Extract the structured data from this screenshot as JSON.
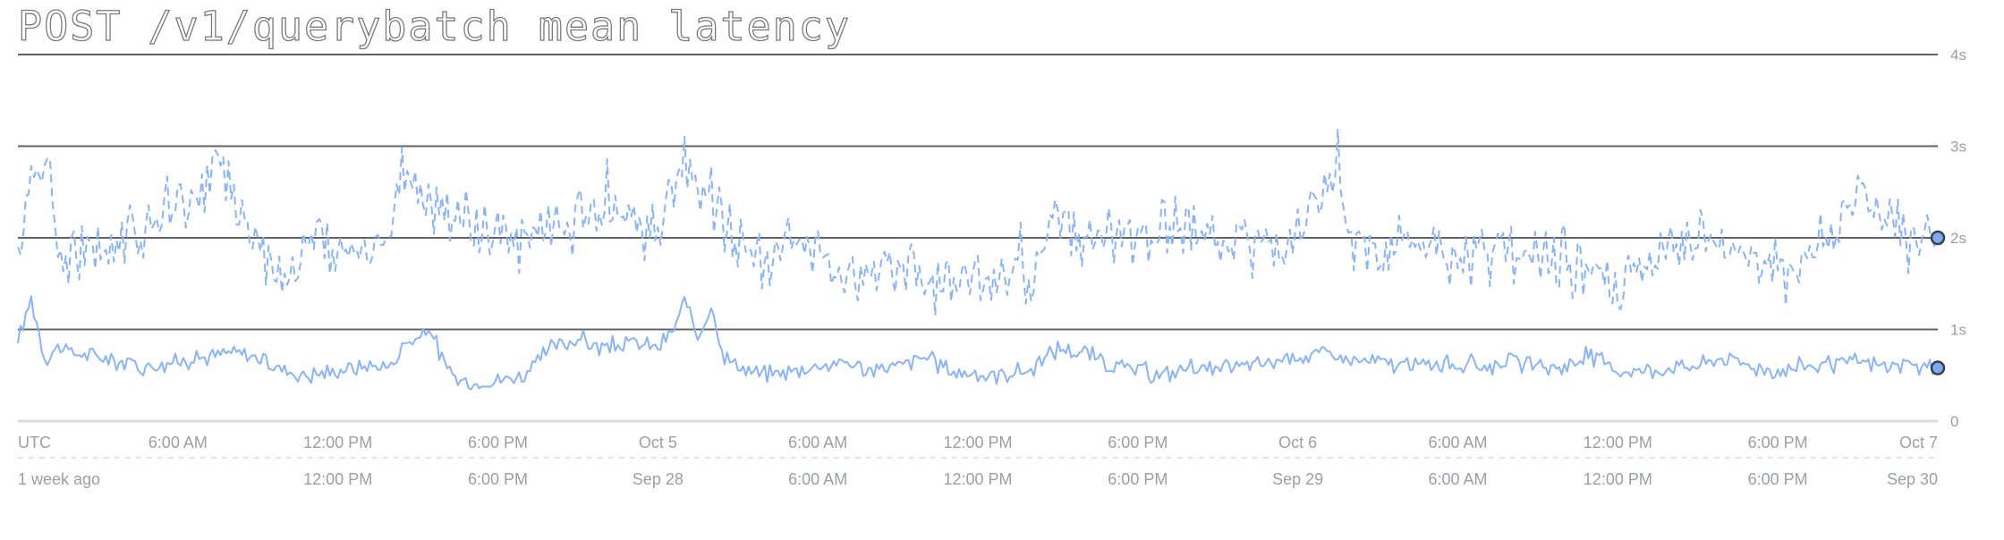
{
  "title": "POST /v1/querybatch mean latency",
  "colors": {
    "series_line": "#8ab4f8",
    "grid_line": "#5f6368",
    "axis_text": "#9aa0a6",
    "baseline": "#dadce0",
    "endpoint_fill": "#7baaf7",
    "endpoint_stroke": "#3c4043"
  },
  "chart_data": {
    "type": "line",
    "title": "POST /v1/querybatch mean latency",
    "grid": true,
    "y_unit": "s",
    "ylim": [
      0,
      4
    ],
    "y_ticks": [
      {
        "value": 4,
        "label": "4s"
      },
      {
        "value": 3,
        "label": "3s"
      },
      {
        "value": 2,
        "label": "2s"
      },
      {
        "value": 1,
        "label": "1s"
      },
      {
        "value": 0,
        "label": "0"
      }
    ],
    "x_unit": "hours",
    "xlim": [
      0,
      72
    ],
    "x_ticks_primary": [
      {
        "hour": 0,
        "label": "UTC"
      },
      {
        "hour": 6,
        "label": "6:00 AM"
      },
      {
        "hour": 12,
        "label": "12:00 PM"
      },
      {
        "hour": 18,
        "label": "6:00 PM"
      },
      {
        "hour": 24,
        "label": "Oct 5"
      },
      {
        "hour": 30,
        "label": "6:00 AM"
      },
      {
        "hour": 36,
        "label": "12:00 PM"
      },
      {
        "hour": 42,
        "label": "6:00 PM"
      },
      {
        "hour": 48,
        "label": "Oct 6"
      },
      {
        "hour": 54,
        "label": "6:00 AM"
      },
      {
        "hour": 60,
        "label": "12:00 PM"
      },
      {
        "hour": 66,
        "label": "6:00 PM"
      },
      {
        "hour": 72,
        "label": "Oct 7"
      }
    ],
    "x_ticks_comparison": [
      {
        "hour": 0,
        "label": "1 week ago"
      },
      {
        "hour": 12,
        "label": "12:00 PM"
      },
      {
        "hour": 18,
        "label": "6:00 PM"
      },
      {
        "hour": 24,
        "label": "Sep 28"
      },
      {
        "hour": 30,
        "label": "6:00 AM"
      },
      {
        "hour": 36,
        "label": "12:00 PM"
      },
      {
        "hour": 42,
        "label": "6:00 PM"
      },
      {
        "hour": 48,
        "label": "Sep 29"
      },
      {
        "hour": 54,
        "label": "6:00 AM"
      },
      {
        "hour": 60,
        "label": "12:00 PM"
      },
      {
        "hour": 66,
        "label": "6:00 PM"
      },
      {
        "hour": 72,
        "label": "Sep 30"
      }
    ],
    "series": [
      {
        "style": "solid",
        "points": [
          [
            0,
            0.85
          ],
          [
            0.5,
            1.35
          ],
          [
            1,
            0.7
          ],
          [
            1.5,
            0.8
          ],
          [
            2,
            0.75
          ],
          [
            3,
            0.7
          ],
          [
            4,
            0.65
          ],
          [
            5,
            0.6
          ],
          [
            6,
            0.65
          ],
          [
            7,
            0.7
          ],
          [
            8,
            0.75
          ],
          [
            9,
            0.7
          ],
          [
            10,
            0.55
          ],
          [
            11,
            0.5
          ],
          [
            12,
            0.55
          ],
          [
            13,
            0.6
          ],
          [
            14,
            0.6
          ],
          [
            14.5,
            0.85
          ],
          [
            15,
            0.9
          ],
          [
            15.5,
            1.0
          ],
          [
            16,
            0.6
          ],
          [
            16.5,
            0.45
          ],
          [
            17,
            0.4
          ],
          [
            18,
            0.45
          ],
          [
            19,
            0.5
          ],
          [
            20,
            0.8
          ],
          [
            21,
            0.9
          ],
          [
            22,
            0.8
          ],
          [
            23,
            0.85
          ],
          [
            24,
            0.8
          ],
          [
            24.5,
            0.95
          ],
          [
            25,
            1.3
          ],
          [
            25.5,
            0.9
          ],
          [
            26,
            1.25
          ],
          [
            26.5,
            0.7
          ],
          [
            27,
            0.6
          ],
          [
            28,
            0.5
          ],
          [
            29,
            0.55
          ],
          [
            30,
            0.6
          ],
          [
            31,
            0.65
          ],
          [
            32,
            0.55
          ],
          [
            33,
            0.6
          ],
          [
            34,
            0.7
          ],
          [
            35,
            0.55
          ],
          [
            36,
            0.5
          ],
          [
            37,
            0.52
          ],
          [
            38,
            0.55
          ],
          [
            39,
            0.8
          ],
          [
            40,
            0.75
          ],
          [
            41,
            0.6
          ],
          [
            42,
            0.55
          ],
          [
            43,
            0.5
          ],
          [
            44,
            0.6
          ],
          [
            45,
            0.55
          ],
          [
            46,
            0.6
          ],
          [
            47,
            0.65
          ],
          [
            48,
            0.7
          ],
          [
            49,
            0.75
          ],
          [
            50,
            0.65
          ],
          [
            51,
            0.65
          ],
          [
            52,
            0.6
          ],
          [
            53,
            0.62
          ],
          [
            54,
            0.62
          ],
          [
            55,
            0.6
          ],
          [
            56,
            0.65
          ],
          [
            57,
            0.58
          ],
          [
            58,
            0.6
          ],
          [
            59,
            0.72
          ],
          [
            60,
            0.55
          ],
          [
            61,
            0.55
          ],
          [
            62,
            0.58
          ],
          [
            63,
            0.6
          ],
          [
            64,
            0.7
          ],
          [
            65,
            0.6
          ],
          [
            66,
            0.55
          ],
          [
            67,
            0.6
          ],
          [
            68,
            0.62
          ],
          [
            69,
            0.65
          ],
          [
            70,
            0.6
          ],
          [
            71,
            0.6
          ],
          [
            72,
            0.58
          ]
        ]
      },
      {
        "style": "dashed",
        "points": [
          [
            0,
            1.9
          ],
          [
            0.5,
            2.5
          ],
          [
            1,
            3.0
          ],
          [
            1.5,
            1.9
          ],
          [
            2,
            1.7
          ],
          [
            3,
            1.8
          ],
          [
            4,
            2.0
          ],
          [
            5,
            2.2
          ],
          [
            6,
            2.4
          ],
          [
            7,
            2.3
          ],
          [
            7.5,
            3.1
          ],
          [
            8,
            2.5
          ],
          [
            9,
            2.0
          ],
          [
            10,
            1.6
          ],
          [
            11,
            1.9
          ],
          [
            12,
            1.8
          ],
          [
            13,
            1.9
          ],
          [
            14,
            2.0
          ],
          [
            14.5,
            2.8
          ],
          [
            15,
            2.5
          ],
          [
            16,
            2.3
          ],
          [
            17,
            2.1
          ],
          [
            18,
            2.0
          ],
          [
            19,
            2.0
          ],
          [
            20,
            2.1
          ],
          [
            21,
            2.2
          ],
          [
            22,
            2.5
          ],
          [
            23,
            2.2
          ],
          [
            24,
            2.1
          ],
          [
            24.5,
            2.4
          ],
          [
            25,
            2.9
          ],
          [
            25.5,
            2.3
          ],
          [
            26,
            2.5
          ],
          [
            27,
            1.9
          ],
          [
            28,
            1.8
          ],
          [
            29,
            2.0
          ],
          [
            30,
            1.7
          ],
          [
            31,
            1.6
          ],
          [
            32,
            1.7
          ],
          [
            33,
            1.8
          ],
          [
            34,
            1.6
          ],
          [
            35,
            1.5
          ],
          [
            36,
            1.5
          ],
          [
            37,
            1.5
          ],
          [
            37.5,
            1.9
          ],
          [
            38,
            1.55
          ],
          [
            39,
            2.2
          ],
          [
            40,
            1.9
          ],
          [
            41,
            2.0
          ],
          [
            42,
            1.9
          ],
          [
            43,
            2.1
          ],
          [
            44,
            2.2
          ],
          [
            45,
            2.0
          ],
          [
            46,
            2.0
          ],
          [
            47,
            1.9
          ],
          [
            48,
            2.0
          ],
          [
            49,
            2.3
          ],
          [
            49.5,
            2.8
          ],
          [
            50,
            1.9
          ],
          [
            51,
            1.8
          ],
          [
            52,
            2.1
          ],
          [
            53,
            1.8
          ],
          [
            54,
            1.7
          ],
          [
            55,
            1.8
          ],
          [
            56,
            1.9
          ],
          [
            57,
            1.7
          ],
          [
            58,
            1.8
          ],
          [
            59,
            1.6
          ],
          [
            60,
            1.45
          ],
          [
            61,
            1.6
          ],
          [
            62,
            1.8
          ],
          [
            63,
            2.0
          ],
          [
            64,
            1.9
          ],
          [
            65,
            1.8
          ],
          [
            66,
            1.6
          ],
          [
            67,
            1.8
          ],
          [
            68,
            2.0
          ],
          [
            68.5,
            2.3
          ],
          [
            69,
            2.5
          ],
          [
            70,
            2.2
          ],
          [
            71,
            2.0
          ],
          [
            72,
            2.0
          ]
        ]
      }
    ],
    "endpoint_values": [
      0.58,
      2.0
    ]
  }
}
